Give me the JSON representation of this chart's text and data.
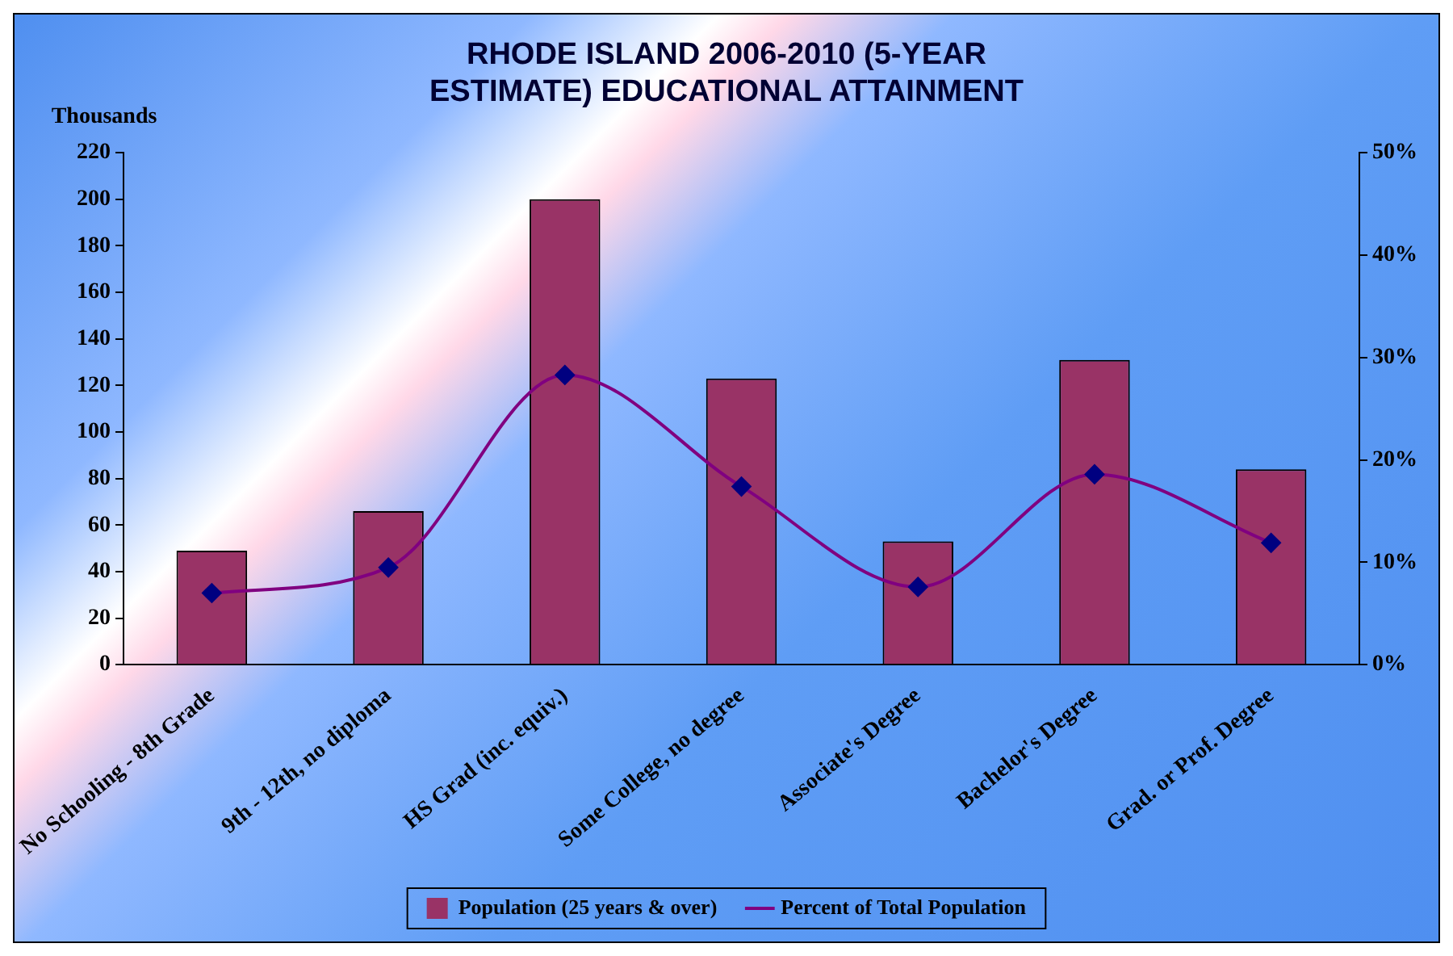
{
  "chart_data": {
    "type": "bar",
    "title": "RHODE ISLAND 2006-2010 (5-YEAR ESTIMATE) EDUCATIONAL ATTAINMENT",
    "ylabel": "Thousands",
    "categories": [
      "No Schooling - 8th Grade",
      "9th - 12th, no diploma",
      "HS Grad (inc. equiv.)",
      "Some College, no degree",
      "Associate's Degree",
      "Bachelor's Degree",
      "Grad. or Prof. Degree"
    ],
    "series": [
      {
        "name": "Population (25 years & over)",
        "color": "#993366",
        "values": [
          49,
          66,
          200,
          123,
          53,
          131,
          84
        ]
      },
      {
        "name": "Percent of Total Population",
        "type": "line",
        "axis": "y2",
        "color": "#800080",
        "marker": "diamond",
        "values": [
          7.0,
          9.5,
          28.3,
          17.4,
          7.6,
          18.6,
          11.9
        ]
      }
    ],
    "ylim": [
      0,
      220
    ],
    "yticks": [
      0,
      20,
      40,
      60,
      80,
      100,
      120,
      140,
      160,
      180,
      200,
      220
    ],
    "y2lim": [
      0,
      50
    ],
    "y2ticks": [
      {
        "value": 0,
        "label": "0%"
      },
      {
        "value": 10,
        "label": "10%"
      },
      {
        "value": 20,
        "label": "20%"
      },
      {
        "value": 30,
        "label": "30%"
      },
      {
        "value": 40,
        "label": "40%"
      },
      {
        "value": 50,
        "label": "50%"
      }
    ],
    "legend": "bottom",
    "grid": false
  }
}
